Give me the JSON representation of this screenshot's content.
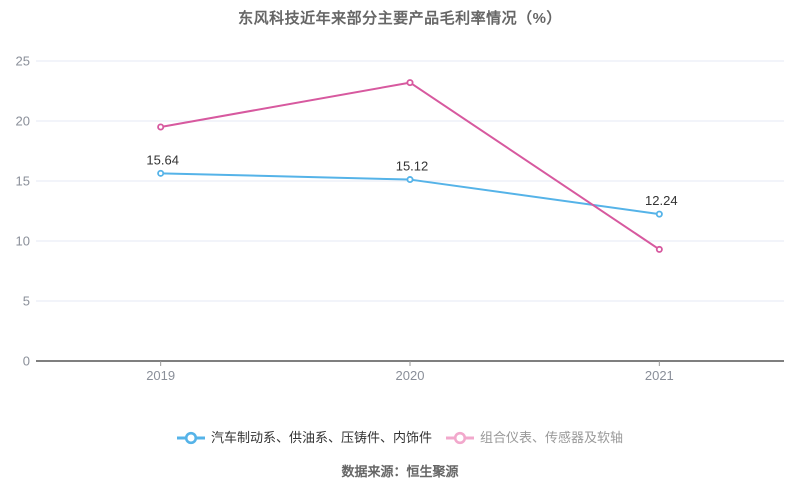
{
  "footer": {
    "source": "数据来源：恒生聚源"
  },
  "colors": {
    "background": "#ffffff",
    "grid": "#e4eaf4",
    "axis": "#555555",
    "tick": "#999999",
    "tick_label": "#8a8f99",
    "data_label": "#333333",
    "title": "#666666"
  },
  "chart_data": {
    "type": "line",
    "title": "东风科技近年来部分主要产品毛利率情况（%）",
    "categories": [
      "2019",
      "2020",
      "2021"
    ],
    "series": [
      {
        "name": "汽车制动系、供油系、压铸件、内饰件",
        "color": "#55b3e8",
        "legend_color": "#55b3e8",
        "legend_text_color": "#333333",
        "values": [
          15.64,
          15.12,
          12.24
        ],
        "point_labels": [
          "15.64",
          "15.12",
          "12.24"
        ]
      },
      {
        "name": "组合仪表、传感器及软轴",
        "color": "#d7599f",
        "legend_color": "#f2a8cc",
        "legend_text_color": "#999999",
        "values": [
          19.5,
          23.2,
          9.3
        ],
        "point_labels": [
          "",
          "",
          ""
        ]
      }
    ],
    "xlabel": "",
    "ylabel": "",
    "ylim": [
      0,
      25
    ],
    "yticks": [
      0,
      5,
      10,
      15,
      20,
      25
    ],
    "grid": true,
    "legend_position": "bottom"
  }
}
